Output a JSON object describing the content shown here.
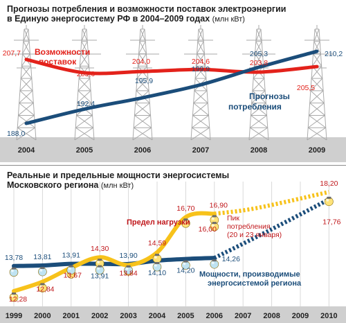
{
  "chart1": {
    "title_line1": "Прогнозы потребления и возможности поставок электроэнергии",
    "title_line2": "в Единую энергосистему РФ в 2004–2009 годах",
    "unit": "(млн кВт)",
    "series_supply_label_1": "Возможности",
    "series_supply_label_2": "поставок",
    "series_demand_label_1": "Прогнозы",
    "series_demand_label_2": "потребления",
    "colors": {
      "supply": "#e3221b",
      "demand": "#1b4d7a",
      "band": "#cfcfcf",
      "tower": "#a9a9a9"
    }
  },
  "chart2": {
    "title_line1": "Реальные и предельные мощности энергосистемы",
    "title_line2": "Московского региона",
    "unit": "(млн кВт)",
    "label_limit": "Предел нагрузки",
    "label_peak_1": "Пик",
    "label_peak_2": "потребления",
    "label_peak_3": "(20 и 23 января)",
    "label_capacity_1": "Мощности, производимые",
    "label_capacity_2": "энергосистемой региона",
    "colors": {
      "limit": "#f7c21b",
      "capacity": "#1b4d7a",
      "peak": "#e3221b",
      "band": "#cfcfcf"
    }
  },
  "chart_data": [
    {
      "type": "line",
      "title": "Прогнозы потребления и возможности поставок электроэнергии в Единую энергосистему РФ в 2004–2009 годах",
      "ylabel": "млн кВт",
      "x": [
        "2004",
        "2005",
        "2006",
        "2007",
        "2008",
        "2009"
      ],
      "series": [
        {
          "name": "Возможности поставок",
          "points": [
            {
              "x": "2004",
              "y": 207.7,
              "label": "207,7"
            },
            {
              "x": "2005",
              "y": 203.6,
              "label": "203,6"
            },
            {
              "x": "2006",
              "y": 204.0,
              "label": "204,0"
            },
            {
              "x": "2007",
              "y": 204.6,
              "label": "204,6"
            },
            {
              "x": "2008",
              "y": 203.8,
              "label": "203,8"
            },
            {
              "x": "2009",
              "y": 205.5,
              "label": "205,5"
            }
          ]
        },
        {
          "name": "Прогнозы потребления",
          "points": [
            {
              "x": "2004",
              "y": 188.0,
              "label": "188,0"
            },
            {
              "x": "2005",
              "y": 192.4,
              "label": "192,4"
            },
            {
              "x": "2006",
              "y": 195.9,
              "label": "195,9"
            },
            {
              "x": "2007",
              "y": 199.9,
              "label": "199,9"
            },
            {
              "x": "2008",
              "y": 205.3,
              "label": "205,3"
            },
            {
              "x": "2009",
              "y": 210.2,
              "label": "210,2"
            }
          ]
        }
      ]
    },
    {
      "type": "line",
      "title": "Реальные и предельные мощности энергосистемы Московского региона",
      "ylabel": "млн кВт",
      "x": [
        "1999",
        "2000",
        "2001",
        "2002",
        "2003",
        "2004",
        "2005",
        "2006",
        "2007",
        "2008",
        "2009",
        "2010"
      ],
      "series": [
        {
          "name": "Предел нагрузки",
          "points": [
            {
              "x": "1999",
              "y": 12.28,
              "label": "12,28"
            },
            {
              "x": "2000",
              "y": 12.84,
              "label": "12,84"
            },
            {
              "x": "2001",
              "y": 13.67,
              "label": "13,67"
            },
            {
              "x": "2002",
              "y": 14.3,
              "label": "14,30"
            },
            {
              "x": "2003",
              "y": 13.84,
              "label": "13,84"
            },
            {
              "x": "2004",
              "y": 14.59,
              "label": "14,59"
            },
            {
              "x": "2005",
              "y": 16.7,
              "label": "16,70"
            },
            {
              "x": "2006",
              "y": 16.9,
              "label": "16,90"
            },
            {
              "x": "2010",
              "y": 18.2,
              "label": "18,20",
              "forecast": true
            }
          ]
        },
        {
          "name": "Мощности, производимые энергосистемой региона",
          "points": [
            {
              "x": "1999",
              "y": 13.78,
              "label": "13,78"
            },
            {
              "x": "2000",
              "y": 13.81,
              "label": "13,81"
            },
            {
              "x": "2001",
              "y": 13.91,
              "label": "13,91"
            },
            {
              "x": "2002",
              "y": 13.91,
              "label": "13,91"
            },
            {
              "x": "2003",
              "y": 13.9,
              "label": "13,90"
            },
            {
              "x": "2004",
              "y": 14.1,
              "label": "14,10"
            },
            {
              "x": "2005",
              "y": 14.2,
              "label": "14,20"
            },
            {
              "x": "2006",
              "y": 14.26,
              "label": "14,26"
            },
            {
              "x": "2010",
              "y": 17.76,
              "label": "17,76",
              "forecast": true
            }
          ]
        },
        {
          "name": "Пик потребления (20 и 23 января)",
          "points": [
            {
              "x": "2006",
              "y": 16.0,
              "label": "16,00"
            }
          ]
        }
      ]
    }
  ]
}
